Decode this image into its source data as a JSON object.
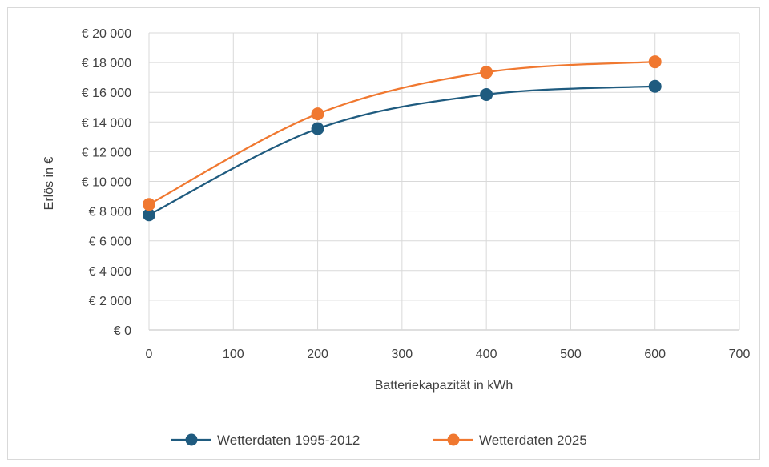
{
  "chart_data": {
    "type": "line",
    "title": "",
    "xlabel": "Batteriekapazität in kWh",
    "ylabel": "Erlös in €",
    "xlim": [
      0,
      700
    ],
    "ylim": [
      0,
      20000
    ],
    "x_ticks": [
      0,
      100,
      200,
      300,
      400,
      500,
      600,
      700
    ],
    "y_ticks": [
      0,
      2000,
      4000,
      6000,
      8000,
      10000,
      12000,
      14000,
      16000,
      18000,
      20000
    ],
    "x_tick_labels": [
      "0",
      "100",
      "200",
      "300",
      "400",
      "500",
      "600",
      "700"
    ],
    "y_tick_labels": [
      "€ 0",
      "€ 2 000",
      "€ 4 000",
      "€ 6 000",
      "€ 8 000",
      "€ 10 000",
      "€ 12 000",
      "€ 14 000",
      "€ 16 000",
      "€ 18 000",
      "€ 20 000"
    ],
    "grid": true,
    "smooth": true,
    "legend_position": "bottom",
    "series": [
      {
        "name": "Wetterdaten 1995-2012",
        "color": "#1f5b7f",
        "x": [
          0,
          200,
          400,
          600
        ],
        "y": [
          7750,
          13550,
          15850,
          16400
        ]
      },
      {
        "name": "Wetterdaten 2025",
        "color": "#f07830",
        "x": [
          0,
          200,
          400,
          600
        ],
        "y": [
          8450,
          14550,
          17350,
          18050
        ]
      }
    ]
  }
}
